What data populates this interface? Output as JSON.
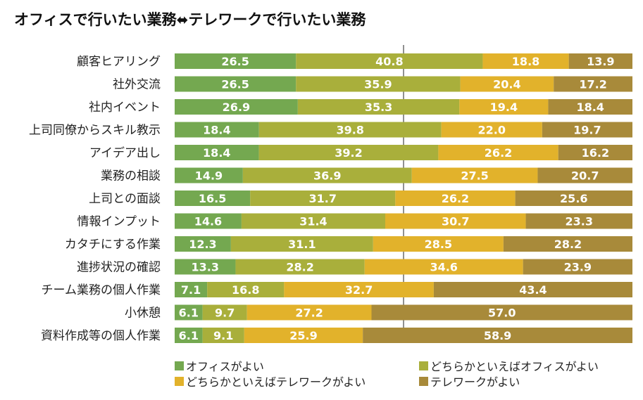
{
  "chart_data": {
    "type": "bar",
    "stacked": true,
    "orientation": "horizontal",
    "title": "オフィスで行いたい業務⟺テレワークで行いたい業務",
    "title_parts": [
      "オフィスで行いたい業務",
      "テレワークで行いたい業務"
    ],
    "xlabel": "",
    "ylabel": "",
    "xlim": [
      0,
      100
    ],
    "reference_line": 50,
    "categories": [
      "顧客ヒアリング",
      "社外交流",
      "社内イベント",
      "上司同僚からスキル教示",
      "アイデア出し",
      "業務の相談",
      "上司との面談",
      "情報インプット",
      "カタチにする作業",
      "進捗状況の確認",
      "チーム業務の個人作業",
      "小休憩",
      "資料作成等の個人作業"
    ],
    "series": [
      {
        "name": "オフィスがよい",
        "color": "#74a850",
        "values": [
          26.5,
          26.5,
          26.9,
          18.4,
          18.4,
          14.9,
          16.5,
          14.6,
          12.3,
          13.3,
          7.1,
          6.1,
          6.1
        ]
      },
      {
        "name": "どちらかといえばオフィスがよい",
        "color": "#a9af3b",
        "values": [
          40.8,
          35.9,
          35.3,
          39.8,
          39.2,
          36.9,
          31.7,
          31.4,
          31.1,
          28.2,
          16.8,
          9.7,
          9.1
        ]
      },
      {
        "name": "どちらかといえばテレワークがよい",
        "color": "#e2b22b",
        "values": [
          18.8,
          20.4,
          19.4,
          22.0,
          26.2,
          27.5,
          26.2,
          30.7,
          28.5,
          34.6,
          32.7,
          27.2,
          25.9
        ]
      },
      {
        "name": "テレワークがよい",
        "color": "#a88a3a",
        "values": [
          13.9,
          17.2,
          18.4,
          19.7,
          16.2,
          20.7,
          25.6,
          23.3,
          28.2,
          23.9,
          43.4,
          57.0,
          58.9
        ]
      }
    ],
    "legend_position": "bottom"
  }
}
